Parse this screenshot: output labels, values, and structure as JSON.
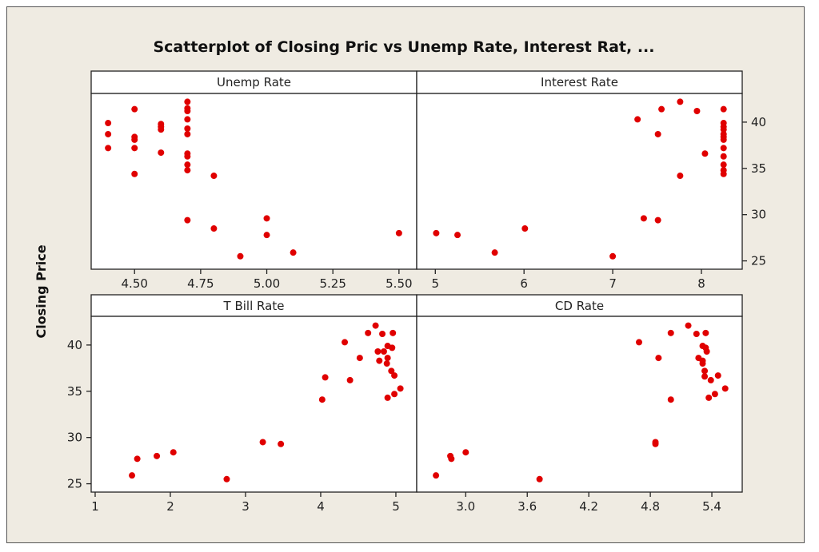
{
  "chart_data": {
    "type": "scatter",
    "title": "Scatterplot of Closing Pric vs Unemp Rate, Interest Rat, ...",
    "ylabel": "Closing Price",
    "ylim": [
      24.1,
      43.1
    ],
    "yticks": [
      25,
      30,
      35,
      40
    ],
    "marker_color": "#e00000",
    "grid": false,
    "panels": [
      {
        "label": "Unemp Rate",
        "xlim": [
          4.336,
          5.567
        ],
        "xticks": [
          "4.50",
          "4.75",
          "5.00",
          "5.25",
          "5.50"
        ],
        "points": [
          [
            4.4,
            39.9
          ],
          [
            4.4,
            38.7
          ],
          [
            4.4,
            37.2
          ],
          [
            4.5,
            41.4
          ],
          [
            4.5,
            38.4
          ],
          [
            4.5,
            38.1
          ],
          [
            4.5,
            37.2
          ],
          [
            4.5,
            34.4
          ],
          [
            4.6,
            39.8
          ],
          [
            4.6,
            39.5
          ],
          [
            4.6,
            39.2
          ],
          [
            4.6,
            36.7
          ],
          [
            4.7,
            42.2
          ],
          [
            4.7,
            41.5
          ],
          [
            4.7,
            41.2
          ],
          [
            4.7,
            40.3
          ],
          [
            4.7,
            39.3
          ],
          [
            4.7,
            38.7
          ],
          [
            4.7,
            36.6
          ],
          [
            4.7,
            36.3
          ],
          [
            4.7,
            35.4
          ],
          [
            4.7,
            34.8
          ],
          [
            4.7,
            29.4
          ],
          [
            4.8,
            34.2
          ],
          [
            4.8,
            28.5
          ],
          [
            4.9,
            25.5
          ],
          [
            5.0,
            29.6
          ],
          [
            5.0,
            27.8
          ],
          [
            5.1,
            25.9
          ],
          [
            5.5,
            28.0
          ]
        ]
      },
      {
        "label": "Interest Rate",
        "xlim": [
          4.79,
          8.46
        ],
        "xticks": [
          "5",
          "6",
          "7",
          "8"
        ],
        "points": [
          [
            5.01,
            28.0
          ],
          [
            5.25,
            27.8
          ],
          [
            5.67,
            25.9
          ],
          [
            6.01,
            28.5
          ],
          [
            7.0,
            25.5
          ],
          [
            7.28,
            40.3
          ],
          [
            7.35,
            29.6
          ],
          [
            7.51,
            38.7
          ],
          [
            7.51,
            29.4
          ],
          [
            7.55,
            41.4
          ],
          [
            7.76,
            42.2
          ],
          [
            7.76,
            34.2
          ],
          [
            7.95,
            41.2
          ],
          [
            8.04,
            36.6
          ],
          [
            8.25,
            41.4
          ],
          [
            8.25,
            39.9
          ],
          [
            8.25,
            39.5
          ],
          [
            8.25,
            39.2
          ],
          [
            8.25,
            38.7
          ],
          [
            8.25,
            38.4
          ],
          [
            8.25,
            38.1
          ],
          [
            8.25,
            37.2
          ],
          [
            8.25,
            36.3
          ],
          [
            8.25,
            35.4
          ],
          [
            8.25,
            34.8
          ],
          [
            8.25,
            34.4
          ]
        ]
      },
      {
        "label": "T Bill Rate",
        "xlim": [
          0.947,
          5.277
        ],
        "xticks": [
          "1",
          "2",
          "3",
          "4",
          "5"
        ],
        "points": [
          [
            1.49,
            25.9
          ],
          [
            1.56,
            27.7
          ],
          [
            1.82,
            28.0
          ],
          [
            2.04,
            28.4
          ],
          [
            2.75,
            25.5
          ],
          [
            3.23,
            29.5
          ],
          [
            3.47,
            29.3
          ],
          [
            4.02,
            34.1
          ],
          [
            4.06,
            36.5
          ],
          [
            4.32,
            40.3
          ],
          [
            4.39,
            36.2
          ],
          [
            4.52,
            38.6
          ],
          [
            4.63,
            41.3
          ],
          [
            4.73,
            42.1
          ],
          [
            4.82,
            41.2
          ],
          [
            4.96,
            41.3
          ],
          [
            4.76,
            39.3
          ],
          [
            4.78,
            38.3
          ],
          [
            4.84,
            39.3
          ],
          [
            4.89,
            39.9
          ],
          [
            4.95,
            39.7
          ],
          [
            4.89,
            38.6
          ],
          [
            4.88,
            38.0
          ],
          [
            4.94,
            37.2
          ],
          [
            4.98,
            36.7
          ],
          [
            5.06,
            35.3
          ],
          [
            4.98,
            34.7
          ],
          [
            4.89,
            34.3
          ]
        ]
      },
      {
        "label": "CD Rate",
        "xlim": [
          2.522,
          5.696
        ],
        "xticks": [
          "3.0",
          "3.6",
          "4.2",
          "4.8",
          "5.4"
        ],
        "points": [
          [
            2.71,
            25.9
          ],
          [
            2.85,
            28.0
          ],
          [
            2.86,
            27.7
          ],
          [
            3.0,
            28.4
          ],
          [
            3.72,
            25.5
          ],
          [
            4.69,
            40.3
          ],
          [
            4.85,
            29.5
          ],
          [
            4.85,
            29.3
          ],
          [
            4.88,
            38.6
          ],
          [
            5.0,
            41.3
          ],
          [
            5.0,
            34.1
          ],
          [
            5.17,
            42.1
          ],
          [
            5.25,
            41.2
          ],
          [
            5.34,
            41.3
          ],
          [
            5.31,
            39.9
          ],
          [
            5.34,
            39.7
          ],
          [
            5.35,
            39.3
          ],
          [
            5.27,
            38.6
          ],
          [
            5.31,
            38.3
          ],
          [
            5.31,
            38.0
          ],
          [
            5.33,
            37.2
          ],
          [
            5.33,
            36.6
          ],
          [
            5.46,
            36.7
          ],
          [
            5.39,
            36.2
          ],
          [
            5.53,
            35.3
          ],
          [
            5.43,
            34.7
          ],
          [
            5.37,
            34.3
          ]
        ]
      }
    ]
  }
}
